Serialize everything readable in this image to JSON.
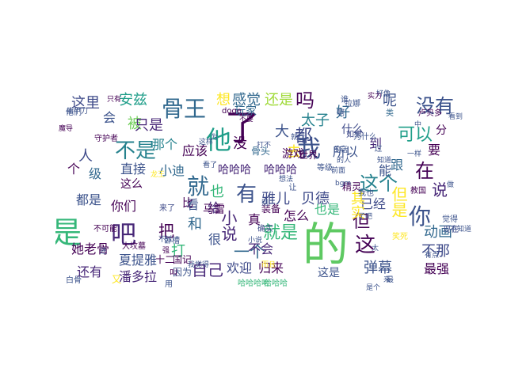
{
  "colors": {
    "dark_purple": "#440154",
    "indigo": "#3b528b",
    "teal": "#21918c",
    "green": "#35b779",
    "yellow_green": "#90d743",
    "yellow": "#fde725"
  },
  "word_cloud": {
    "words": [
      {
        "text": "的",
        "color": "#5ec962"
      },
      {
        "text": "是",
        "color": "#35b779"
      },
      {
        "text": "了",
        "color": "#440154"
      },
      {
        "text": "我",
        "color": "#3b528b"
      },
      {
        "text": "你",
        "color": "#3b528b"
      },
      {
        "text": "吧",
        "color": "#482878"
      },
      {
        "text": "就",
        "color": "#31688e"
      },
      {
        "text": "有",
        "color": "#3b528b"
      },
      {
        "text": "他",
        "color": "#1f9e89"
      },
      {
        "text": "骨王",
        "color": "#31688e"
      },
      {
        "text": "这",
        "color": "#440154"
      },
      {
        "text": "都",
        "color": "#3e4a89"
      },
      {
        "text": "吗",
        "color": "#440154"
      },
      {
        "text": "没有",
        "color": "#3b528b"
      },
      {
        "text": "可以",
        "color": "#1f9e89"
      },
      {
        "text": "不是",
        "color": "#26828e"
      },
      {
        "text": "说",
        "color": "#482878"
      },
      {
        "text": "这个",
        "color": "#26828e"
      },
      {
        "text": "在",
        "color": "#440154"
      },
      {
        "text": "就是",
        "color": "#35b779"
      },
      {
        "text": "雅儿",
        "color": "#3e4a89"
      },
      {
        "text": "贝德",
        "color": "#3e4a89"
      },
      {
        "text": "一个",
        "color": "#31688e"
      },
      {
        "text": "弹幕",
        "color": "#3b528b"
      },
      {
        "text": "最强",
        "color": "#440154"
      },
      {
        "text": "自己",
        "color": "#482878"
      },
      {
        "text": "动画",
        "color": "#31688e"
      },
      {
        "text": "不那",
        "color": "#3e4a89"
      },
      {
        "text": "欢迎",
        "color": "#3e4a89"
      },
      {
        "text": "归来",
        "color": "#440154"
      },
      {
        "text": "哈哈哈",
        "color": "#482878"
      },
      {
        "text": "哈哈哈",
        "color": "#482878"
      },
      {
        "text": "还是",
        "color": "#a0da39"
      },
      {
        "text": "感觉",
        "color": "#31688e"
      },
      {
        "text": "想",
        "color": "#fde725"
      },
      {
        "text": "安兹",
        "color": "#1f9e89"
      },
      {
        "text": "这里",
        "color": "#3e4a89"
      },
      {
        "text": "呢",
        "color": "#3b528b"
      },
      {
        "text": "好",
        "color": "#31688e"
      },
      {
        "text": "太子",
        "color": "#26828e"
      },
      {
        "text": "大",
        "color": "#3b528b"
      },
      {
        "text": "什么",
        "color": "#3e4a89"
      },
      {
        "text": "被",
        "color": "#6ece58"
      },
      {
        "text": "只是",
        "color": "#482878"
      },
      {
        "text": "那个",
        "color": "#26828e"
      },
      {
        "text": "应该",
        "color": "#440154"
      },
      {
        "text": "直接",
        "color": "#3b528b"
      },
      {
        "text": "小迪",
        "color": "#31688e"
      },
      {
        "text": "这么",
        "color": "#440154"
      },
      {
        "text": "你们",
        "color": "#440154"
      },
      {
        "text": "也",
        "color": "#35b779"
      },
      {
        "text": "都是",
        "color": "#3b528b"
      },
      {
        "text": "她老骨",
        "color": "#440154"
      },
      {
        "text": "夏提雅",
        "color": "#3b528b"
      },
      {
        "text": "还有",
        "color": "#482878"
      },
      {
        "text": "潘多拉",
        "color": "#482878"
      },
      {
        "text": "和",
        "color": "#31688e"
      },
      {
        "text": "看",
        "color": "#3b528b"
      },
      {
        "text": "很",
        "color": "#3b528b"
      },
      {
        "text": "给",
        "color": "#482878"
      },
      {
        "text": "真",
        "color": "#440154"
      },
      {
        "text": "怎么",
        "color": "#440154"
      },
      {
        "text": "也是",
        "color": "#35b779"
      },
      {
        "text": "已经",
        "color": "#3e4a89"
      },
      {
        "text": "但是",
        "color": "#fde725"
      },
      {
        "text": "但",
        "color": "#440154"
      },
      {
        "text": "其实",
        "color": "#fde725"
      },
      {
        "text": "不会",
        "color": "#482878"
      },
      {
        "text": "这是",
        "color": "#3b528b"
      },
      {
        "text": "没",
        "color": "#440154"
      },
      {
        "text": "去",
        "color": "#fde725"
      },
      {
        "text": "游戏",
        "color": "#440154"
      },
      {
        "text": "玩家",
        "color": "#31688e"
      },
      {
        "text": "所以",
        "color": "#3b528b"
      },
      {
        "text": "能",
        "color": "#3b528b"
      },
      {
        "text": "跟",
        "color": "#31688e"
      },
      {
        "text": "要",
        "color": "#440154"
      },
      {
        "text": "到",
        "color": "#482878"
      },
      {
        "text": "分",
        "color": "#440154"
      },
      {
        "text": "会",
        "color": "#3b528b"
      },
      {
        "text": "小说",
        "color": "#482878"
      },
      {
        "text": "马雷",
        "color": "#440154"
      },
      {
        "text": "把",
        "color": "#440154"
      },
      {
        "text": "打",
        "color": "#35b779"
      },
      {
        "text": "比",
        "color": "#440154"
      },
      {
        "text": "级",
        "color": "#31688e"
      },
      {
        "text": "人",
        "color": "#3e4a89"
      },
      {
        "text": "个",
        "color": "#440154"
      },
      {
        "text": "十二",
        "color": "#440154"
      },
      {
        "text": "国记",
        "color": "#440154"
      },
      {
        "text": "又",
        "color": "#fde725"
      },
      {
        "text": "大坟墓",
        "color": "#440154"
      },
      {
        "text": "装备",
        "color": "#440154"
      },
      {
        "text": "骨头",
        "color": "#31688e"
      },
      {
        "text": "等级",
        "color": "#3b528b"
      },
      {
        "text": "精灵",
        "color": "#440154"
      },
      {
        "text": "教国",
        "color": "#440154"
      },
      {
        "text": "哈哈哈哈",
        "color": "#35b779"
      },
      {
        "text": "哈哈哈",
        "color": "#35b779"
      },
      {
        "text": "确实",
        "color": "#3e4a89"
      },
      {
        "text": "doge",
        "color": "#440154"
      },
      {
        "text": "世界",
        "color": "#440154"
      },
      {
        "text": "不可能",
        "color": "#440154"
      },
      {
        "text": "他们",
        "color": "#3b528b"
      },
      {
        "text": "只有",
        "color": "#440154"
      },
      {
        "text": "守护者",
        "color": "#440154"
      },
      {
        "text": "知道",
        "color": "#3b528b"
      },
      {
        "text": "一样",
        "color": "#3b528b"
      },
      {
        "text": "觉得",
        "color": "#3b528b"
      },
      {
        "text": "现在",
        "color": "#3e4a89"
      },
      {
        "text": "如果",
        "color": "#3e4a89"
      },
      {
        "text": "有点",
        "color": "#3b528b"
      },
      {
        "text": "因为",
        "color": "#3b528b"
      },
      {
        "text": "来了",
        "color": "#3e4a89"
      },
      {
        "text": "好像",
        "color": "#3b528b"
      },
      {
        "text": "实力",
        "color": "#440154"
      },
      {
        "text": "谁",
        "color": "#3b528b"
      },
      {
        "text": "啊",
        "color": "#3b528b"
      },
      {
        "text": "类",
        "color": "#31688e"
      },
      {
        "text": "卢贝多",
        "color": "#440154"
      },
      {
        "text": "卧槽",
        "color": "#3b528b"
      },
      {
        "text": "笑死",
        "color": "#fde725"
      },
      {
        "text": "拉娜",
        "color": "#3b528b"
      },
      {
        "text": "指甲刀",
        "color": "#3b528b"
      },
      {
        "text": "看到",
        "color": "#3b528b"
      },
      {
        "text": "魔导",
        "color": "#440154"
      },
      {
        "text": "叫",
        "color": "#440154"
      },
      {
        "text": "用",
        "color": "#3b528b"
      },
      {
        "text": "让",
        "color": "#3b528b"
      },
      {
        "text": "过",
        "color": "#3b528b"
      },
      {
        "text": "为什么",
        "color": "#3b528b"
      },
      {
        "text": "我也",
        "color": "#3b528b"
      },
      {
        "text": "了吧",
        "color": "#3b528b"
      },
      {
        "text": "最",
        "color": "#3b528b"
      },
      {
        "text": "做",
        "color": "#3b528b"
      },
      {
        "text": "中",
        "color": "#3b528b"
      },
      {
        "text": "不知道",
        "color": "#3b528b"
      },
      {
        "text": "白骨",
        "color": "#3b528b"
      },
      {
        "text": "还",
        "color": "#3b528b"
      },
      {
        "text": "强",
        "color": "#440154"
      },
      {
        "text": "不要",
        "color": "#440154"
      },
      {
        "text": "这样",
        "color": "#3b528b"
      },
      {
        "text": "为",
        "color": "#3b528b"
      },
      {
        "text": "不过",
        "color": "#3b528b"
      },
      {
        "text": "打不",
        "color": "#3b528b"
      },
      {
        "text": "小说",
        "color": "#3b528b"
      },
      {
        "text": "龙王",
        "color": "#fde725"
      },
      {
        "text": "别",
        "color": "#3b528b"
      },
      {
        "text": "就行",
        "color": "#3b528b"
      },
      {
        "text": "的话",
        "color": "#3b528b"
      },
      {
        "text": "前面",
        "color": "#3b528b"
      },
      {
        "text": "的人",
        "color": "#3b528b"
      },
      {
        "text": "想法",
        "color": "#3b528b"
      },
      {
        "text": "我觉得",
        "color": "#3b528b"
      },
      {
        "text": "bgm",
        "color": "#3b528b"
      },
      {
        "text": "而且",
        "color": "#fde725"
      },
      {
        "text": "是个",
        "color": "#3b528b"
      },
      {
        "text": "来",
        "color": "#3b528b"
      },
      {
        "text": "太",
        "color": "#3b528b"
      },
      {
        "text": "看了",
        "color": "#3b528b"
      }
    ]
  }
}
